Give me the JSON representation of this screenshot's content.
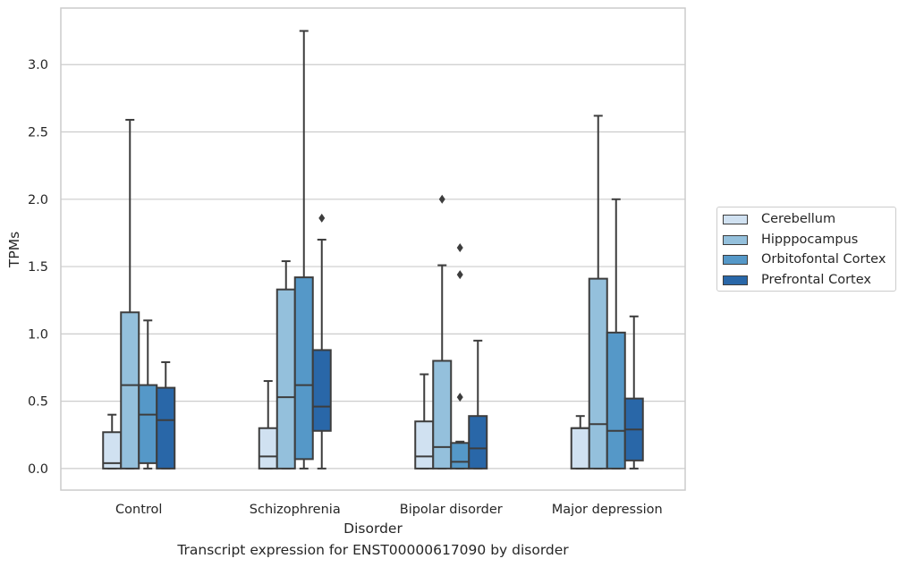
{
  "caption": "Transcript expression for ENST00000617090 by disorder",
  "chart_data": {
    "type": "boxplot",
    "xlabel": "Disorder",
    "ylabel": "TPMs",
    "ylim": [
      -0.16,
      3.42
    ],
    "yticks": [
      0.0,
      0.5,
      1.0,
      1.5,
      2.0,
      2.5,
      3.0
    ],
    "ytick_labels": [
      "0.0",
      "0.5",
      "1.0",
      "1.5",
      "2.0",
      "2.5",
      "3.0"
    ],
    "grid": "horizontal",
    "legend_position": "right",
    "categories": [
      "Control",
      "Schizophrenia",
      "Bipolar disorder",
      "Major depression"
    ],
    "series": [
      {
        "name": "Cerebellum",
        "color": "#d0e1f1",
        "boxes": [
          {
            "whislo": 0.0,
            "q1": 0.0,
            "med": 0.04,
            "q3": 0.27,
            "whishi": 0.4,
            "fliers": []
          },
          {
            "whislo": 0.0,
            "q1": 0.0,
            "med": 0.09,
            "q3": 0.3,
            "whishi": 0.65,
            "fliers": []
          },
          {
            "whislo": 0.0,
            "q1": 0.0,
            "med": 0.09,
            "q3": 0.35,
            "whishi": 0.7,
            "fliers": []
          },
          {
            "whislo": 0.0,
            "q1": 0.0,
            "med": 0.3,
            "q3": 0.3,
            "whishi": 0.39,
            "fliers": []
          }
        ]
      },
      {
        "name": "Hipppocampus",
        "color": "#94c0dc",
        "boxes": [
          {
            "whislo": 0.0,
            "q1": 0.0,
            "med": 0.62,
            "q3": 1.16,
            "whishi": 2.59,
            "fliers": []
          },
          {
            "whislo": 0.0,
            "q1": 0.0,
            "med": 0.53,
            "q3": 1.33,
            "whishi": 1.54,
            "fliers": []
          },
          {
            "whislo": 0.0,
            "q1": 0.0,
            "med": 0.16,
            "q3": 0.8,
            "whishi": 1.51,
            "fliers": [
              2.0
            ]
          },
          {
            "whislo": 0.0,
            "q1": 0.0,
            "med": 0.33,
            "q3": 1.41,
            "whishi": 2.62,
            "fliers": []
          }
        ]
      },
      {
        "name": "Orbitofontal Cortex",
        "color": "#5598c8",
        "boxes": [
          {
            "whislo": 0.0,
            "q1": 0.04,
            "med": 0.4,
            "q3": 0.62,
            "whishi": 1.1,
            "fliers": []
          },
          {
            "whislo": 0.0,
            "q1": 0.07,
            "med": 0.62,
            "q3": 1.42,
            "whishi": 3.25,
            "fliers": []
          },
          {
            "whislo": 0.0,
            "q1": 0.0,
            "med": 0.05,
            "q3": 0.19,
            "whishi": 0.2,
            "fliers": [
              0.53,
              1.44,
              1.64
            ]
          },
          {
            "whislo": 0.0,
            "q1": 0.0,
            "med": 0.28,
            "q3": 1.01,
            "whishi": 2.0,
            "fliers": []
          }
        ]
      },
      {
        "name": "Prefrontal Cortex",
        "color": "#2967a8",
        "boxes": [
          {
            "whislo": 0.0,
            "q1": 0.0,
            "med": 0.36,
            "q3": 0.6,
            "whishi": 0.79,
            "fliers": []
          },
          {
            "whislo": 0.0,
            "q1": 0.28,
            "med": 0.46,
            "q3": 0.88,
            "whishi": 1.7,
            "fliers": [
              1.86
            ]
          },
          {
            "whislo": 0.0,
            "q1": 0.0,
            "med": 0.15,
            "q3": 0.39,
            "whishi": 0.95,
            "fliers": []
          },
          {
            "whislo": 0.0,
            "q1": 0.06,
            "med": 0.29,
            "q3": 0.52,
            "whishi": 1.13,
            "fliers": []
          }
        ]
      }
    ]
  }
}
